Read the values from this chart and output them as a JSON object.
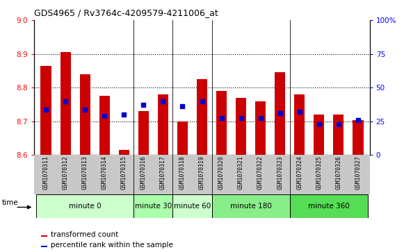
{
  "title": "GDS4965 / Rv3764c-4209579-4211006_at",
  "samples": [
    "GSM1070311",
    "GSM1070312",
    "GSM1070313",
    "GSM1070314",
    "GSM1070315",
    "GSM1070316",
    "GSM1070317",
    "GSM1070318",
    "GSM1070319",
    "GSM1070320",
    "GSM1070321",
    "GSM1070322",
    "GSM1070323",
    "GSM1070324",
    "GSM1070325",
    "GSM1070326",
    "GSM1070327"
  ],
  "bar_tops": [
    8.865,
    8.905,
    8.84,
    8.775,
    8.615,
    8.73,
    8.78,
    8.7,
    8.825,
    8.79,
    8.77,
    8.76,
    8.845,
    8.78,
    8.72,
    8.72,
    8.703
  ],
  "blue_dots": [
    8.735,
    8.76,
    8.735,
    8.715,
    8.72,
    8.748,
    8.76,
    8.745,
    8.76,
    8.71,
    8.71,
    8.71,
    8.725,
    8.728,
    8.692,
    8.692,
    8.703
  ],
  "bar_bottom": 8.6,
  "ylim_left": [
    8.6,
    9.0
  ],
  "ylim_right": [
    0,
    100
  ],
  "yticks_left": [
    8.6,
    8.7,
    8.8,
    8.9,
    9.0
  ],
  "yticks_right": [
    0,
    25,
    50,
    75,
    100
  ],
  "right_tick_labels": [
    "0",
    "25",
    "50",
    "75",
    "100%"
  ],
  "bar_color": "#cc0000",
  "dot_color": "#0000cc",
  "bg_color": "#ffffff",
  "tick_area_color": "#c8c8c8",
  "groups_def": [
    {
      "start": 0,
      "end": 4,
      "label": "minute 0",
      "color": "#ccffcc"
    },
    {
      "start": 5,
      "end": 6,
      "label": "minute 30",
      "color": "#aaffaa"
    },
    {
      "start": 7,
      "end": 8,
      "label": "minute 60",
      "color": "#ccffcc"
    },
    {
      "start": 9,
      "end": 12,
      "label": "minute 180",
      "color": "#88ee88"
    },
    {
      "start": 13,
      "end": 16,
      "label": "minute 360",
      "color": "#55dd55"
    }
  ],
  "vline_positions": [
    4.5,
    6.5,
    8.5,
    12.5
  ]
}
